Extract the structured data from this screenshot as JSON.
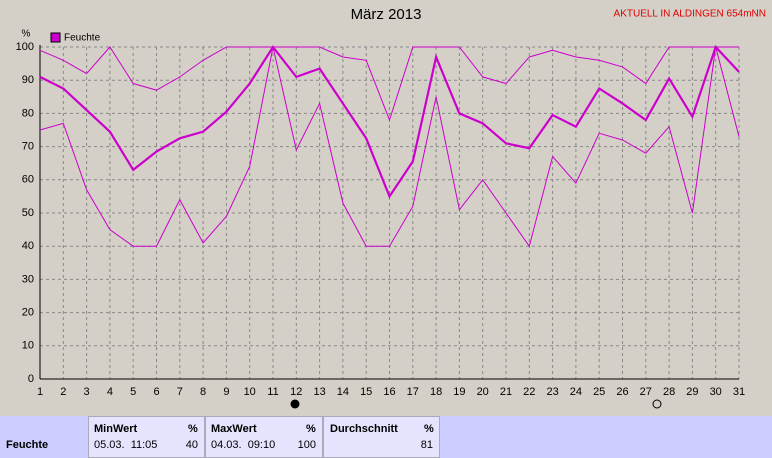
{
  "chart_data": {
    "type": "line",
    "title": "März 2013",
    "annotation": "AKTUELL IN ALDINGEN 654mNN",
    "y_label": "%",
    "x": [
      1,
      2,
      3,
      4,
      5,
      6,
      7,
      8,
      9,
      10,
      11,
      12,
      13,
      14,
      15,
      16,
      17,
      18,
      19,
      20,
      21,
      22,
      23,
      24,
      25,
      26,
      27,
      28,
      29,
      30,
      31
    ],
    "xlim": [
      1,
      31
    ],
    "xticks": [
      1,
      2,
      3,
      4,
      5,
      6,
      7,
      8,
      9,
      10,
      11,
      12,
      13,
      14,
      15,
      16,
      17,
      18,
      19,
      20,
      21,
      22,
      23,
      24,
      25,
      26,
      27,
      28,
      29,
      30,
      31
    ],
    "ylim": [
      0,
      100
    ],
    "yticks": [
      0,
      10,
      20,
      30,
      40,
      50,
      60,
      70,
      80,
      90,
      100
    ],
    "grid": true,
    "series": [
      {
        "name": "Feuchte",
        "color": "#cc00cc",
        "width": 2.2,
        "values": [
          91,
          87.5,
          81,
          74.5,
          63,
          68.5,
          72.5,
          74.5,
          80.5,
          89,
          100,
          91,
          93.5,
          83,
          72.5,
          55,
          65.5,
          97,
          80,
          77,
          71,
          69.5,
          79.5,
          76,
          87.5,
          83,
          78,
          90.5,
          79,
          100,
          92.5
        ]
      },
      {
        "color": "#cc00cc",
        "width": 1,
        "values": [
          99,
          96,
          92,
          100,
          89,
          87,
          91,
          96,
          100,
          100,
          100,
          100,
          100,
          97,
          96,
          78,
          100,
          100,
          100,
          91,
          89,
          97,
          99,
          97,
          96,
          94,
          89,
          100,
          100,
          100,
          100
        ]
      },
      {
        "color": "#cc00cc",
        "width": 1,
        "values": [
          75,
          77,
          57,
          45,
          40,
          40,
          54,
          41,
          49,
          64,
          100,
          69,
          83,
          53,
          40,
          40,
          52,
          85,
          51,
          60,
          50,
          40,
          67,
          59,
          74,
          72,
          68,
          76,
          50,
          100,
          73
        ]
      }
    ]
  },
  "table": {
    "header": [
      "MinWert",
      "%",
      "MaxWert",
      "%",
      "Durchschnitt",
      "%"
    ],
    "row": {
      "label": "Feuchte",
      "min_time": "05.03.  11:05",
      "min": "40",
      "max_time": "04.03.  09:10",
      "max": "100",
      "avg": "81"
    }
  }
}
